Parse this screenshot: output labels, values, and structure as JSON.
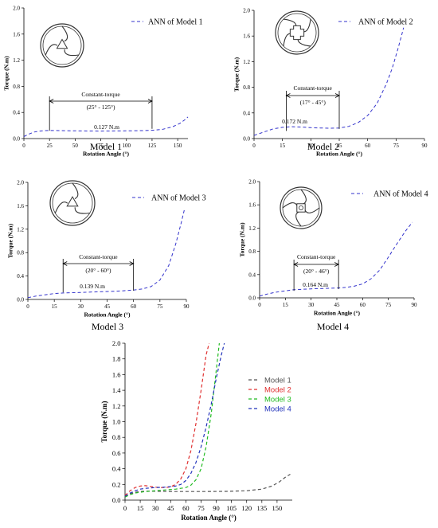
{
  "chart_data": [
    {
      "type": "line",
      "panel_label": "Model 1",
      "xlabel": "Rotation Angle (°)",
      "ylabel": "Torque (N.m)",
      "xlim": [
        0,
        160
      ],
      "ylim": [
        0,
        2.0
      ],
      "xticks": [
        "0",
        "25",
        "50",
        "75",
        "100",
        "125",
        "150"
      ],
      "yticks": [
        "0.0",
        "0.4",
        "0.8",
        "1.2",
        "1.6",
        "2.0"
      ],
      "grid": false,
      "legend_position": "top-right",
      "series": [
        {
          "name": "ANN of Model 1",
          "color": "#3333cc",
          "style": "dashed",
          "x": [
            0,
            5,
            10,
            15,
            20,
            25,
            35,
            50,
            75,
            100,
            115,
            125,
            135,
            145,
            152,
            158,
            160
          ],
          "y": [
            0.03,
            0.07,
            0.1,
            0.115,
            0.122,
            0.125,
            0.122,
            0.118,
            0.115,
            0.118,
            0.122,
            0.127,
            0.14,
            0.18,
            0.23,
            0.3,
            0.33
          ]
        }
      ],
      "annotations": [
        {
          "text": "Constant-torque",
          "kind": "range-title"
        },
        {
          "text": "(25° - 125°)",
          "kind": "range",
          "x_start": 25,
          "x_end": 125
        },
        {
          "text": "0.127 N.m",
          "kind": "value"
        }
      ],
      "icon": "mechanism-model-1-icon"
    },
    {
      "type": "line",
      "panel_label": "Model 2",
      "xlabel": "Rotation Angle (°)",
      "ylabel": "Torque (N.m)",
      "xlim": [
        0,
        90
      ],
      "ylim": [
        0,
        2.0
      ],
      "xticks": [
        "0",
        "15",
        "30",
        "45",
        "60",
        "75",
        "90"
      ],
      "yticks": [
        "0.0",
        "0.4",
        "0.8",
        "1.2",
        "1.6",
        "2.0"
      ],
      "grid": false,
      "legend_position": "top-right",
      "series": [
        {
          "name": "ANN of Model 2",
          "color": "#3333cc",
          "style": "dashed",
          "x": [
            0,
            5,
            10,
            15,
            20,
            25,
            30,
            35,
            40,
            45,
            50,
            55,
            60,
            65,
            70,
            73,
            76,
            78,
            79
          ],
          "y": [
            0.05,
            0.1,
            0.15,
            0.175,
            0.185,
            0.18,
            0.17,
            0.165,
            0.16,
            0.165,
            0.19,
            0.25,
            0.36,
            0.55,
            0.86,
            1.1,
            1.4,
            1.62,
            1.73
          ]
        }
      ],
      "annotations": [
        {
          "text": "Constant-torque",
          "kind": "range-title"
        },
        {
          "text": "(17° - 45°)",
          "kind": "range",
          "x_start": 17,
          "x_end": 45
        },
        {
          "text": "0.172 N.m",
          "kind": "value"
        }
      ],
      "icon": "mechanism-model-2-icon"
    },
    {
      "type": "line",
      "panel_label": "Model 3",
      "xlabel": "Rotation Angle (°)",
      "ylabel": "Torque (N.m)",
      "xlim": [
        0,
        90
      ],
      "ylim": [
        0,
        2.0
      ],
      "xticks": [
        "0",
        "15",
        "30",
        "45",
        "60",
        "75",
        "90"
      ],
      "yticks": [
        "0.0",
        "0.4",
        "0.8",
        "1.2",
        "1.6",
        "2.0"
      ],
      "grid": false,
      "legend_position": "top-right",
      "series": [
        {
          "name": "ANN of Model 3",
          "color": "#3333cc",
          "style": "dashed",
          "x": [
            0,
            5,
            10,
            15,
            20,
            30,
            40,
            50,
            55,
            60,
            65,
            70,
            75,
            80,
            84,
            87,
            89
          ],
          "y": [
            0.03,
            0.06,
            0.08,
            0.1,
            0.11,
            0.12,
            0.13,
            0.14,
            0.15,
            0.16,
            0.18,
            0.22,
            0.33,
            0.58,
            0.95,
            1.3,
            1.55
          ]
        }
      ],
      "annotations": [
        {
          "text": "Constant-torque",
          "kind": "range-title"
        },
        {
          "text": "(20° - 60°)",
          "kind": "range",
          "x_start": 20,
          "x_end": 60
        },
        {
          "text": "0.139 N.m",
          "kind": "value"
        }
      ],
      "icon": "mechanism-model-3-icon"
    },
    {
      "type": "line",
      "panel_label": "Model 4",
      "xlabel": "Rotation Angle (°)",
      "ylabel": "Torque (N.m)",
      "xlim": [
        0,
        90
      ],
      "ylim": [
        0,
        2.0
      ],
      "xticks": [
        "0",
        "15",
        "30",
        "45",
        "60",
        "75",
        "90"
      ],
      "yticks": [
        "0.0",
        "0.4",
        "0.8",
        "1.2",
        "1.6",
        "2.0"
      ],
      "grid": false,
      "legend_position": "top-right",
      "series": [
        {
          "name": "ANN of Model 4",
          "color": "#3333cc",
          "style": "dashed",
          "x": [
            0,
            5,
            10,
            15,
            20,
            30,
            40,
            46,
            50,
            55,
            60,
            65,
            70,
            75,
            80,
            85,
            89
          ],
          "y": [
            0.03,
            0.07,
            0.1,
            0.12,
            0.14,
            0.155,
            0.165,
            0.17,
            0.18,
            0.2,
            0.24,
            0.33,
            0.48,
            0.7,
            0.93,
            1.15,
            1.3
          ]
        }
      ],
      "annotations": [
        {
          "text": "Constant-torque",
          "kind": "range-title"
        },
        {
          "text": "(20° - 46°)",
          "kind": "range",
          "x_start": 20,
          "x_end": 46
        },
        {
          "text": "0.164 N.m",
          "kind": "value"
        }
      ],
      "icon": "mechanism-model-4-icon"
    },
    {
      "type": "line",
      "xlabel": "Rotation Angle (°)",
      "ylabel": "Torque (N.m)",
      "xlim": [
        0,
        165
      ],
      "ylim": [
        0,
        2.0
      ],
      "xticks": [
        "0",
        "15",
        "30",
        "45",
        "60",
        "75",
        "90",
        "105",
        "120",
        "135",
        "150"
      ],
      "yticks": [
        "0.0",
        "0.2",
        "0.4",
        "0.6",
        "0.8",
        "1.0",
        "1.2",
        "1.4",
        "1.6",
        "1.8",
        "2.0"
      ],
      "grid": false,
      "legend_position": "upper-middle",
      "series": [
        {
          "name": "Model 1",
          "color": "#555555",
          "style": "dashed",
          "x": [
            0,
            5,
            10,
            15,
            20,
            25,
            35,
            50,
            75,
            100,
            120,
            135,
            145,
            152,
            158,
            163
          ],
          "y": [
            0.05,
            0.08,
            0.1,
            0.11,
            0.115,
            0.115,
            0.112,
            0.11,
            0.11,
            0.112,
            0.12,
            0.14,
            0.18,
            0.23,
            0.29,
            0.33
          ]
        },
        {
          "name": "Model 2",
          "color": "#e03030",
          "style": "dashed",
          "x": [
            0,
            5,
            10,
            15,
            20,
            25,
            30,
            35,
            40,
            45,
            50,
            55,
            60,
            65,
            70,
            75,
            80,
            83
          ],
          "y": [
            0.06,
            0.12,
            0.16,
            0.18,
            0.185,
            0.175,
            0.165,
            0.16,
            0.16,
            0.17,
            0.2,
            0.27,
            0.4,
            0.63,
            0.98,
            1.4,
            1.85,
            2.0
          ]
        },
        {
          "name": "Model 3",
          "color": "#20bb20",
          "style": "dashed",
          "x": [
            0,
            5,
            10,
            15,
            20,
            30,
            40,
            50,
            55,
            60,
            65,
            70,
            75,
            80,
            85,
            90,
            93
          ],
          "y": [
            0.04,
            0.07,
            0.09,
            0.1,
            0.11,
            0.12,
            0.13,
            0.14,
            0.15,
            0.16,
            0.19,
            0.26,
            0.4,
            0.68,
            1.1,
            1.65,
            2.0
          ]
        },
        {
          "name": "Model 4",
          "color": "#2233bb",
          "style": "dashed",
          "x": [
            0,
            5,
            10,
            15,
            20,
            30,
            40,
            50,
            55,
            60,
            65,
            70,
            75,
            80,
            85,
            90,
            95,
            98
          ],
          "y": [
            0.05,
            0.09,
            0.12,
            0.14,
            0.15,
            0.16,
            0.165,
            0.18,
            0.2,
            0.25,
            0.34,
            0.48,
            0.68,
            0.93,
            1.22,
            1.55,
            1.85,
            2.0
          ]
        }
      ]
    }
  ]
}
